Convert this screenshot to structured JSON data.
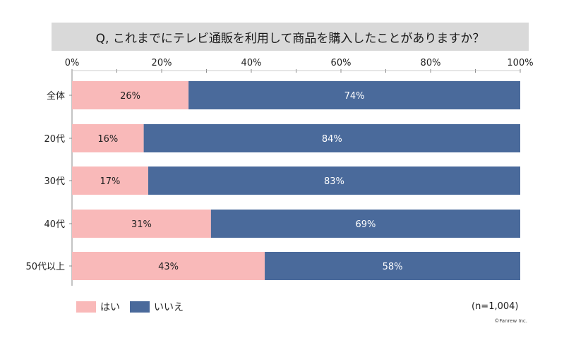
{
  "title": "Q, これまでにテレビ通販を利用して商品を購入したことがありますか？",
  "chart_data": {
    "type": "bar",
    "orientation": "horizontal",
    "stacked": true,
    "categories": [
      "全体",
      "20代",
      "30代",
      "40代",
      "50代以上"
    ],
    "series": [
      {
        "name": "はい",
        "values": [
          26,
          16,
          17,
          31,
          43
        ],
        "labels": [
          "26%",
          "16%",
          "17%",
          "31%",
          "43%"
        ],
        "color": "#f9b9b9"
      },
      {
        "name": "いいえ",
        "values": [
          74,
          84,
          83,
          69,
          58
        ],
        "labels": [
          "74%",
          "84%",
          "83%",
          "69%",
          "58%"
        ],
        "color": "#4a6a9b"
      }
    ],
    "xlim": [
      0,
      100
    ],
    "xticks": [
      "0%",
      "20%",
      "40%",
      "60%",
      "80%",
      "100%"
    ],
    "legend_position": "bottom-left"
  },
  "note": "(n=1,004)",
  "credit": "©Fanrew Inc."
}
